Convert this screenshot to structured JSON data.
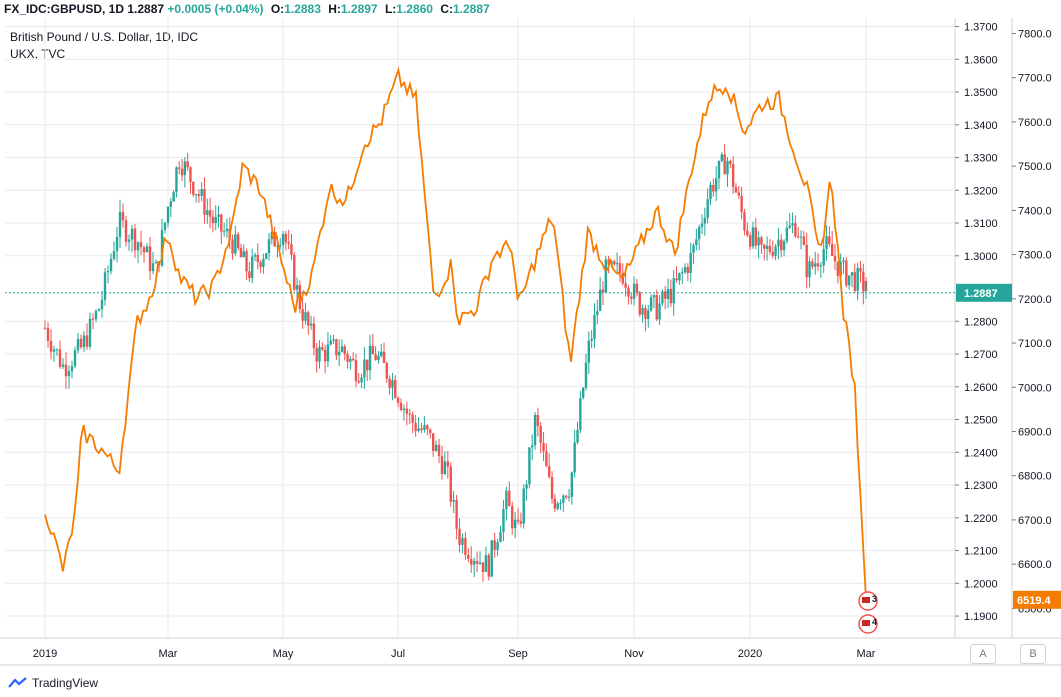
{
  "header": {
    "symbol": "FX_IDC:GBPUSD, 1D",
    "last": "1.2887",
    "change": "+0.0005 (+0.04%)",
    "o_label": "O:",
    "o_value": "1.2883",
    "h_label": "H:",
    "h_value": "1.2897",
    "l_label": "L:",
    "l_value": "1.2860",
    "c_label": "C:",
    "c_value": "1.2887"
  },
  "legend": {
    "main": "British Pound / U.S. Dollar, 1D, IDC",
    "overlay": "UKX, TVC"
  },
  "footer": {
    "brand": "TradingView"
  },
  "scale_buttons": {
    "a": "A",
    "b": "B"
  },
  "colors": {
    "up": "#26a69a",
    "down": "#ef5350",
    "overlay": "#f57c00",
    "grid": "#e9eaed",
    "axis_text": "#131722",
    "last_line": "#26a69a"
  },
  "chart_data": {
    "type": "line",
    "x_tick_labels": [
      "2019",
      "Mar",
      "May",
      "Jul",
      "Sep",
      "Nov",
      "2020",
      "Mar"
    ],
    "right_axis": {
      "ylim": [
        1.1833,
        1.3726
      ],
      "ticks": [
        "1.3700",
        "1.3600",
        "1.3500",
        "1.3400",
        "1.3300",
        "1.3200",
        "1.3100",
        "1.3000",
        "1.2800",
        "1.2700",
        "1.2600",
        "1.2500",
        "1.2400",
        "1.2300",
        "1.2200",
        "1.2100",
        "1.2000",
        "1.1900"
      ],
      "last_value_label": "1.2887"
    },
    "far_right_axis": {
      "ylim": [
        6433,
        7835
      ],
      "ticks": [
        "7800.0",
        "7700.0",
        "7600.0",
        "7500.0",
        "7400.0",
        "7300.0",
        "7200.0",
        "7100.0",
        "7000.0",
        "6900.0",
        "6800.0",
        "6700.0",
        "6600.0",
        "6500.0"
      ],
      "last_value_label": "6519.4"
    },
    "series": [
      {
        "name": "FX_IDC:GBPUSD, 1D",
        "kind": "candlestick-close",
        "x_month_index": [
          0,
          0.3,
          0.6,
          0.9,
          1.2,
          1.5,
          1.8,
          2.0,
          2.2,
          2.5,
          2.8,
          3.1,
          3.4,
          3.7,
          4.0,
          4.3,
          4.6,
          5.0,
          5.3,
          5.6,
          5.9,
          6.2,
          6.5,
          6.8,
          7.0,
          7.2,
          7.5,
          7.8,
          8.0,
          8.3,
          8.6,
          8.9,
          9.2,
          9.5,
          9.8,
          10.1,
          10.4,
          10.7,
          11.0,
          11.3,
          11.6,
          11.9,
          12.2,
          12.5,
          12.8,
          13.0,
          13.3,
          13.6,
          13.9,
          14.1
        ],
        "values": [
          1.278,
          1.266,
          1.272,
          1.285,
          1.31,
          1.305,
          1.295,
          1.315,
          1.33,
          1.32,
          1.31,
          1.305,
          1.295,
          1.302,
          1.308,
          1.285,
          1.27,
          1.272,
          1.265,
          1.27,
          1.262,
          1.25,
          1.245,
          1.235,
          1.215,
          1.21,
          1.205,
          1.225,
          1.215,
          1.25,
          1.225,
          1.23,
          1.27,
          1.295,
          1.295,
          1.285,
          1.284,
          1.29,
          1.3,
          1.32,
          1.33,
          1.31,
          1.3,
          1.305,
          1.31,
          1.295,
          1.303,
          1.295,
          1.292,
          1.2887
        ]
      },
      {
        "name": "UKX, TVC",
        "kind": "line",
        "x_month_index": [
          0,
          0.3,
          0.5,
          0.6,
          0.9,
          1.2,
          1.5,
          1.7,
          2.0,
          2.2,
          2.5,
          2.8,
          3.1,
          3.3,
          3.6,
          3.9,
          4.2,
          4.5,
          4.8,
          5.1,
          5.4,
          5.7,
          6.0,
          6.3,
          6.6,
          6.9,
          7.0,
          7.3,
          7.6,
          7.9,
          8.0,
          8.3,
          8.6,
          8.9,
          9.2,
          9.5,
          9.8,
          10.1,
          10.4,
          10.7,
          11.0,
          11.3,
          11.6,
          11.9,
          12.2,
          12.5,
          12.8,
          13.0,
          13.2,
          13.4,
          13.6,
          13.8,
          14.0
        ],
        "values": [
          6728,
          6585,
          6720,
          6900,
          6862,
          6810,
          7150,
          7200,
          7350,
          7250,
          7200,
          7230,
          7350,
          7500,
          7450,
          7320,
          7180,
          7250,
          7450,
          7420,
          7550,
          7600,
          7700,
          7650,
          7200,
          7280,
          7150,
          7180,
          7300,
          7320,
          7180,
          7290,
          7390,
          7050,
          7350,
          7280,
          7240,
          7320,
          7400,
          7300,
          7500,
          7660,
          7690,
          7580,
          7640,
          7650,
          7520,
          7440,
          7290,
          7480,
          7180,
          7010,
          6519.4
        ]
      }
    ],
    "annotations": [
      "3",
      "4"
    ]
  }
}
